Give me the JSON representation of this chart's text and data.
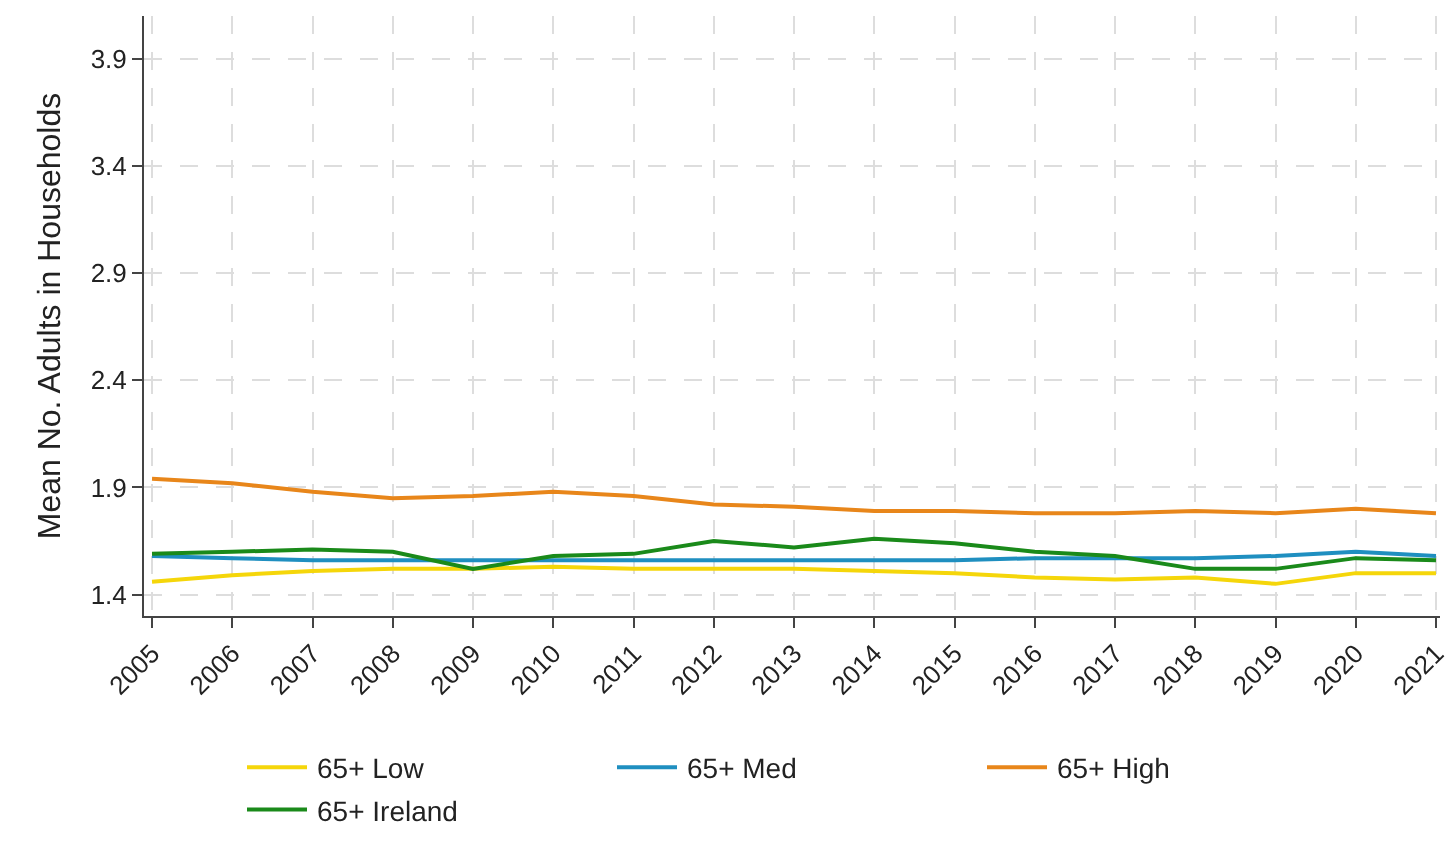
{
  "chart_data": {
    "type": "line",
    "ylabel": "Mean No. Adults in Households",
    "x": [
      2005,
      2006,
      2007,
      2008,
      2009,
      2010,
      2011,
      2012,
      2013,
      2014,
      2015,
      2016,
      2017,
      2018,
      2019,
      2020,
      2021
    ],
    "series": [
      {
        "name": "65+ Low",
        "color": "#f5d60a",
        "values": [
          1.46,
          1.49,
          1.51,
          1.52,
          1.52,
          1.53,
          1.52,
          1.52,
          1.52,
          1.51,
          1.5,
          1.48,
          1.47,
          1.48,
          1.45,
          1.5,
          1.5
        ]
      },
      {
        "name": "65+ Med",
        "color": "#1f8fc0",
        "values": [
          1.58,
          1.57,
          1.56,
          1.56,
          1.56,
          1.56,
          1.56,
          1.56,
          1.56,
          1.56,
          1.56,
          1.57,
          1.57,
          1.57,
          1.58,
          1.6,
          1.58
        ]
      },
      {
        "name": "65+ High",
        "color": "#e8861a",
        "values": [
          1.94,
          1.92,
          1.88,
          1.85,
          1.86,
          1.88,
          1.86,
          1.82,
          1.81,
          1.79,
          1.79,
          1.78,
          1.78,
          1.79,
          1.78,
          1.8,
          1.78
        ]
      },
      {
        "name": "65+ Ireland",
        "color": "#1a8a1a",
        "values": [
          1.59,
          1.6,
          1.61,
          1.6,
          1.52,
          1.58,
          1.59,
          1.65,
          1.62,
          1.66,
          1.64,
          1.6,
          1.58,
          1.52,
          1.52,
          1.57,
          1.56
        ]
      }
    ],
    "xlim": [
      2004.9,
      2021.05
    ],
    "xticks": [
      2005,
      2006,
      2007,
      2008,
      2009,
      2010,
      2011,
      2012,
      2013,
      2014,
      2015,
      2016,
      2017,
      2018,
      2019,
      2020,
      2021
    ],
    "ylim": [
      1.3,
      4.1
    ],
    "yticks": [
      1.4,
      1.9,
      2.4,
      2.9,
      3.4,
      3.9
    ],
    "grid": true,
    "legend": "bottom",
    "marker": "none",
    "line_style": "solid"
  }
}
